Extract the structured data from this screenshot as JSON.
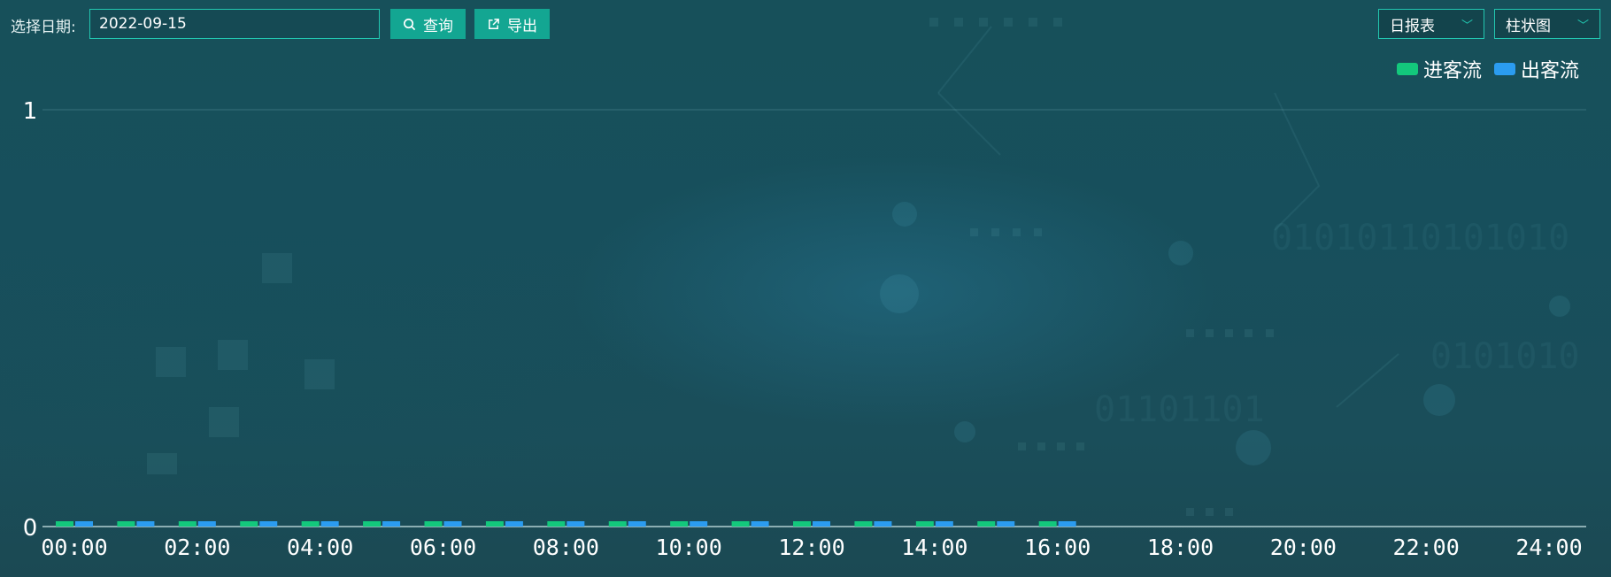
{
  "toolbar": {
    "date_label": "选择日期:",
    "date_value": "2022-09-15",
    "query_label": "查询",
    "export_label": "导出",
    "report_type": "日报表",
    "chart_type": "柱状图"
  },
  "colors": {
    "accent": "#13a692",
    "border": "#22c7b0",
    "in_flow": "#13c87c",
    "out_flow": "#2b9cf0"
  },
  "chart_data": {
    "type": "bar",
    "title": "",
    "xlabel": "",
    "ylabel": "",
    "ylim": [
      0,
      1
    ],
    "y_ticks": [
      "0",
      "1"
    ],
    "x_tick_labels": [
      "00:00",
      "02:00",
      "04:00",
      "06:00",
      "08:00",
      "10:00",
      "12:00",
      "14:00",
      "16:00",
      "18:00",
      "20:00",
      "22:00",
      "24:00"
    ],
    "categories": [
      "00:00",
      "01:00",
      "02:00",
      "03:00",
      "04:00",
      "05:00",
      "06:00",
      "07:00",
      "08:00",
      "09:00",
      "10:00",
      "11:00",
      "12:00",
      "13:00",
      "14:00",
      "15:00",
      "16:00"
    ],
    "series": [
      {
        "name": "进客流",
        "color": "#13c87c",
        "values": [
          0,
          0,
          0,
          0,
          0,
          0,
          0,
          0,
          0,
          0,
          0,
          0,
          0,
          0,
          0,
          0,
          0
        ]
      },
      {
        "name": "出客流",
        "color": "#2b9cf0",
        "values": [
          0,
          0,
          0,
          0,
          0,
          0,
          0,
          0,
          0,
          0,
          0,
          0,
          0,
          0,
          0,
          0,
          0
        ]
      }
    ],
    "grid": true,
    "legend_position": "top-right"
  }
}
